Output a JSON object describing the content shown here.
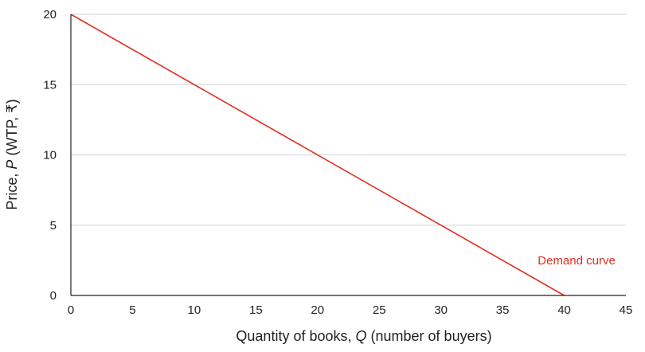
{
  "chart_data": {
    "type": "line",
    "xlabel_prefix": "Quantity of books, ",
    "xlabel_var": "Q",
    "xlabel_suffix": " (number of buyers)",
    "ylabel_prefix": "Price, ",
    "ylabel_var": "P",
    "ylabel_suffix": " (WTP, ₹)",
    "xlim": [
      0,
      45
    ],
    "ylim": [
      0,
      20
    ],
    "xticks": [
      0,
      5,
      10,
      15,
      20,
      25,
      30,
      35,
      40,
      45
    ],
    "yticks": [
      0,
      5,
      10,
      15,
      20
    ],
    "grid": "horizontal",
    "series": [
      {
        "name": "Demand curve",
        "color": "#e0301e",
        "x": [
          0,
          40
        ],
        "y": [
          20,
          0
        ]
      }
    ],
    "annotations": [
      {
        "text": "Demand curve",
        "x": 41,
        "y": 2.5,
        "color": "#e0301e"
      }
    ]
  }
}
